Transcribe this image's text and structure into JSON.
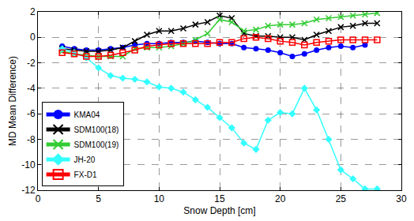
{
  "chart_data": {
    "type": "line",
    "xlabel": "Snow Depth [cm]",
    "ylabel": "MD Mean Difference)",
    "xlim": [
      0,
      30
    ],
    "xticks": [
      0,
      5,
      10,
      15,
      20,
      25,
      30
    ],
    "ylim": [
      -12,
      2
    ],
    "yticks": [
      -12,
      -10,
      -8,
      -6,
      -4,
      -2,
      0,
      2
    ],
    "grid": true,
    "legend": "lower left",
    "x": [
      2,
      3,
      4,
      5,
      6,
      7,
      8,
      9,
      10,
      11,
      12,
      13,
      14,
      15,
      16,
      17,
      18,
      19,
      20,
      21,
      22,
      23,
      24,
      25,
      26,
      27,
      28
    ],
    "series": [
      {
        "name": "KMA04",
        "color": "#0000ff",
        "marker": "circle",
        "line_style": "solid",
        "values": [
          -0.7,
          -0.9,
          -1.0,
          -1.0,
          -0.9,
          -0.8,
          -0.6,
          -0.5,
          -0.5,
          -0.4,
          -0.4,
          -0.3,
          -0.4,
          -0.5,
          -0.5,
          -0.8,
          -0.9,
          -1.0,
          -1.2,
          -1.5,
          -1.3,
          -1.0,
          -0.8,
          -0.7,
          -0.8,
          -0.6,
          null
        ]
      },
      {
        "name": "SDM100(18)",
        "color": "#000000",
        "marker": "x",
        "line_style": "solid",
        "values": [
          -0.9,
          -1.0,
          -1.1,
          -1.1,
          -1.0,
          -0.8,
          -0.3,
          0.2,
          0.5,
          0.5,
          0.7,
          1.0,
          1.2,
          1.7,
          1.5,
          0.3,
          0.1,
          0.1,
          0.0,
          0.0,
          -0.2,
          0.2,
          0.5,
          0.8,
          0.9,
          1.1,
          1.1
        ]
      },
      {
        "name": "SDM100(19)",
        "color": "#33cc33",
        "marker": "x",
        "line_style": "solid",
        "values": [
          -1.1,
          -1.3,
          -1.4,
          -1.5,
          -1.5,
          -1.5,
          -0.9,
          -0.8,
          -0.8,
          -0.7,
          -0.5,
          -0.2,
          0.3,
          1.4,
          1.2,
          0.5,
          0.6,
          0.9,
          1.0,
          1.0,
          1.1,
          1.4,
          1.5,
          1.6,
          1.7,
          1.8,
          1.9
        ]
      },
      {
        "name": "JH-20",
        "color": "#33ffff",
        "marker": "diamond",
        "line_style": "solid",
        "values": [
          -0.9,
          -1.2,
          -1.6,
          -2.4,
          -3.0,
          -3.2,
          -3.3,
          -3.5,
          -3.9,
          -4.0,
          -4.3,
          -4.9,
          -5.5,
          -6.3,
          -7.1,
          -8.3,
          -8.8,
          -6.5,
          -5.9,
          -6.0,
          -4.0,
          -5.7,
          -8.0,
          -10.4,
          -11.1,
          -11.9,
          -11.9
        ]
      },
      {
        "name": "FX-D1",
        "color": "#ff0000",
        "marker": "open square",
        "line_style": "solid",
        "values": [
          -1.2,
          -1.3,
          -1.5,
          -1.5,
          -1.4,
          -1.2,
          -1.0,
          -0.7,
          -0.6,
          -0.5,
          -0.5,
          -0.5,
          -0.5,
          -0.4,
          -0.4,
          -0.1,
          0.0,
          -0.1,
          -0.3,
          -0.4,
          -0.6,
          -0.4,
          -0.3,
          -0.2,
          -0.2,
          -0.2,
          -0.2
        ]
      }
    ]
  }
}
